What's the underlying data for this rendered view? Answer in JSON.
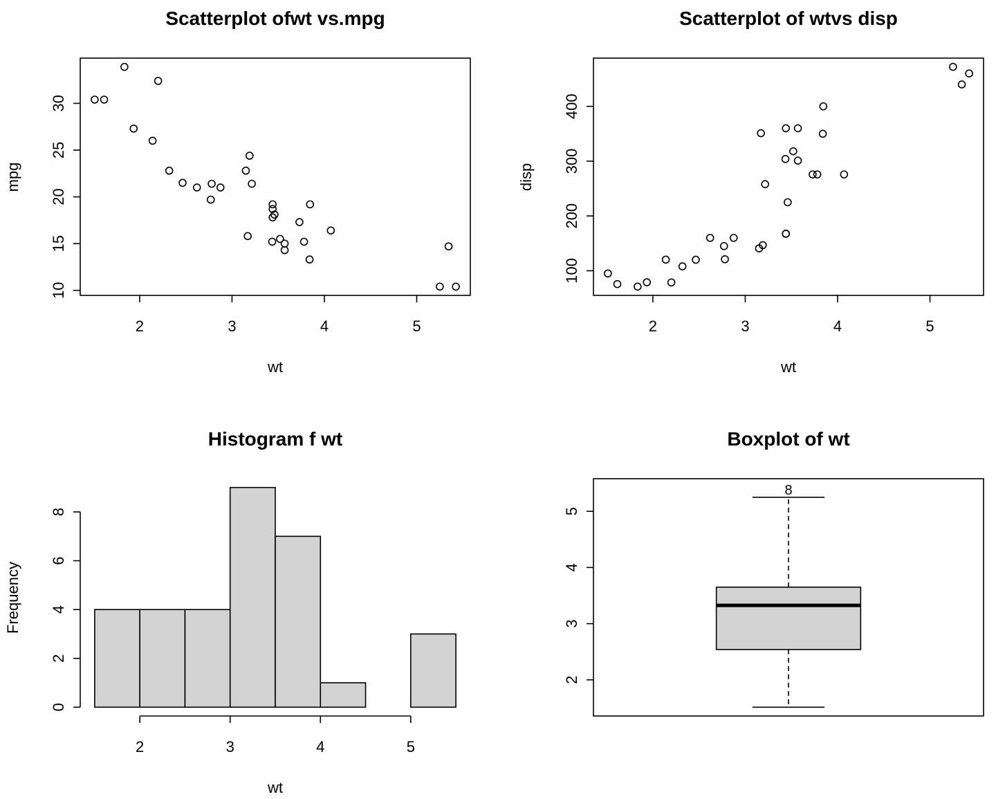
{
  "chart_data": [
    {
      "type": "scatter",
      "title": "Scatterplot ofwt vs.mpg",
      "xlabel": "wt",
      "ylabel": "mpg",
      "xlim": [
        1.513,
        5.424
      ],
      "ylim": [
        10.4,
        33.9
      ],
      "xticks": [
        2,
        3,
        4,
        5
      ],
      "yticks": [
        10,
        15,
        20,
        25,
        30
      ],
      "x": [
        2.62,
        2.875,
        2.32,
        3.215,
        3.44,
        3.46,
        3.57,
        3.19,
        3.15,
        3.44,
        3.44,
        4.07,
        3.73,
        3.78,
        5.25,
        5.424,
        5.345,
        2.2,
        1.615,
        1.835,
        2.465,
        3.52,
        3.435,
        3.84,
        3.845,
        1.935,
        2.14,
        1.513,
        3.17,
        2.77,
        3.57,
        2.78
      ],
      "y": [
        21.0,
        21.0,
        22.8,
        21.4,
        18.7,
        18.1,
        14.3,
        24.4,
        22.8,
        19.2,
        17.8,
        16.4,
        17.3,
        15.2,
        10.4,
        10.4,
        14.7,
        32.4,
        30.4,
        33.9,
        21.5,
        15.5,
        15.2,
        13.3,
        19.2,
        27.3,
        26.0,
        30.4,
        15.8,
        19.7,
        15.0,
        21.4
      ]
    },
    {
      "type": "scatter",
      "title": "Scatterplot of wtvs disp",
      "xlabel": "wt",
      "ylabel": "disp",
      "xlim": [
        1.513,
        5.424
      ],
      "ylim": [
        71.1,
        472
      ],
      "xticks": [
        2,
        3,
        4,
        5
      ],
      "yticks": [
        100,
        200,
        300,
        400
      ],
      "x": [
        2.62,
        2.875,
        2.32,
        3.215,
        3.44,
        3.46,
        3.57,
        3.19,
        3.15,
        3.44,
        3.44,
        4.07,
        3.73,
        3.78,
        5.25,
        5.424,
        5.345,
        2.2,
        1.615,
        1.835,
        2.465,
        3.52,
        3.435,
        3.84,
        3.845,
        1.935,
        2.14,
        1.513,
        3.17,
        2.77,
        3.57,
        2.78
      ],
      "y": [
        160,
        160,
        108,
        258,
        360,
        225,
        360,
        146.7,
        140.8,
        167.6,
        167.6,
        275.8,
        275.8,
        275.8,
        472,
        460,
        440,
        78.7,
        75.7,
        71.1,
        120.1,
        318,
        304,
        350,
        400,
        79,
        120.3,
        95.1,
        351,
        145,
        301,
        121
      ]
    },
    {
      "type": "bar",
      "title": "Histogram f wt",
      "xlabel": "wt",
      "ylabel": "Frequency",
      "breaks": [
        1.5,
        2.0,
        2.5,
        3.0,
        3.5,
        4.0,
        4.5,
        5.0,
        5.5
      ],
      "values": [
        4,
        4,
        4,
        9,
        7,
        1,
        0,
        3
      ],
      "xticks": [
        2,
        3,
        4,
        5
      ],
      "yticks": [
        0,
        2,
        4,
        6,
        8
      ]
    },
    {
      "type": "box",
      "title": "Boxplot of wt",
      "xlabel": "",
      "ylabel": "",
      "min": 1.513,
      "q1": 2.54,
      "median": 3.325,
      "q3": 3.65,
      "max": 5.25,
      "ylim": [
        1.513,
        5.424
      ],
      "yticks": [
        2,
        3,
        4,
        5
      ],
      "outlier_label": "8"
    }
  ]
}
